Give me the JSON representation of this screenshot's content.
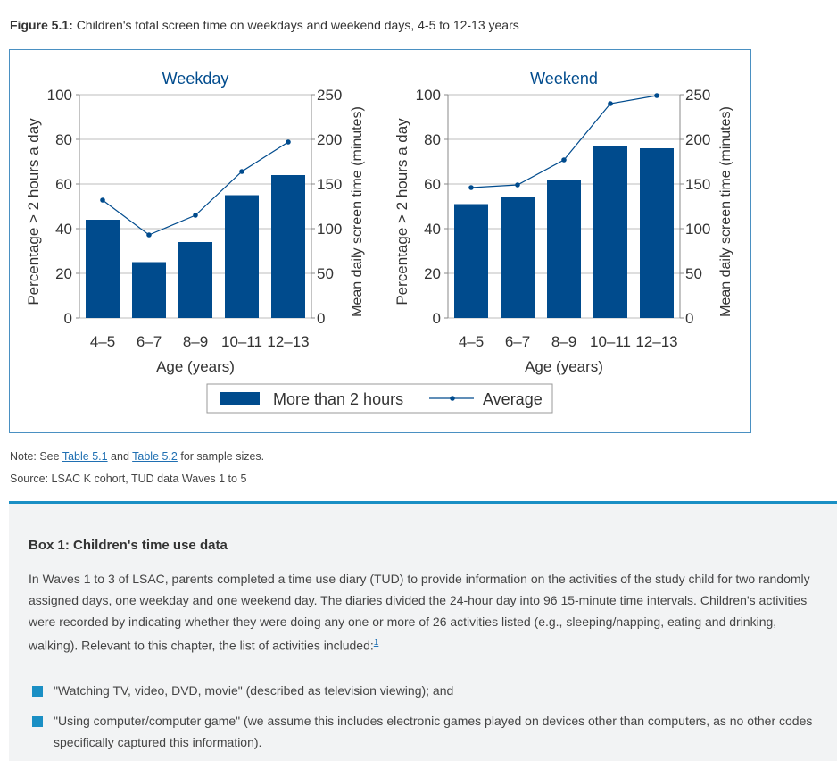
{
  "figure": {
    "label": "Figure 5.1:",
    "title": "Children's total screen time on weekdays and weekend days, 4-5 to 12-13 years"
  },
  "colors": {
    "bar": "#004b8d",
    "line": "#004b8d",
    "frame": "#4a90c2",
    "accent": "#1a8fc4",
    "link": "#1f6fb2"
  },
  "chart_data": [
    {
      "type": "bar",
      "title": "Weekday",
      "categories": [
        "4–5",
        "6–7",
        "8–9",
        "10–11",
        "12–13"
      ],
      "xlabel": "Age (years)",
      "ylabel": "Percentage > 2 hours a day",
      "y2label": "Mean daily screen time (minutes)",
      "ylim": [
        0,
        100
      ],
      "y2lim": [
        0,
        250
      ],
      "yticks": [
        "0",
        "20",
        "40",
        "60",
        "80",
        "100"
      ],
      "y2ticks": [
        "0",
        "50",
        "100",
        "150",
        "200",
        "250"
      ],
      "grid": true,
      "series": [
        {
          "name": "More than 2 hours",
          "type": "bar",
          "axis": "left",
          "values": [
            44,
            25,
            34,
            55,
            64
          ]
        },
        {
          "name": "Average",
          "type": "line",
          "axis": "right",
          "values": [
            132,
            93,
            115,
            164,
            197
          ]
        }
      ]
    },
    {
      "type": "bar",
      "title": "Weekend",
      "categories": [
        "4–5",
        "6–7",
        "8–9",
        "10–11",
        "12–13"
      ],
      "xlabel": "Age (years)",
      "ylabel": "Percentage > 2 hours a day",
      "y2label": "Mean daily screen time (minutes)",
      "ylim": [
        0,
        100
      ],
      "y2lim": [
        0,
        250
      ],
      "yticks": [
        "0",
        "20",
        "40",
        "60",
        "80",
        "100"
      ],
      "y2ticks": [
        "0",
        "50",
        "100",
        "150",
        "200",
        "250"
      ],
      "grid": true,
      "series": [
        {
          "name": "More than 2 hours",
          "type": "bar",
          "axis": "left",
          "values": [
            51,
            54,
            62,
            77,
            76
          ]
        },
        {
          "name": "Average",
          "type": "line",
          "axis": "right",
          "values": [
            146,
            149,
            177,
            240,
            249
          ]
        }
      ]
    }
  ],
  "legend": {
    "bar_label": "More than 2 hours",
    "line_label": "Average",
    "placement": "bottom"
  },
  "notes": {
    "note_prefix": "Note: See ",
    "link1": "Table 5.1",
    "and": " and ",
    "link2": "Table 5.2",
    "note_suffix": " for sample sizes.",
    "source": "Source: LSAC K cohort, TUD data Waves 1 to 5"
  },
  "box": {
    "title": "Box 1: Children's time use data",
    "paragraph": "In Waves 1 to 3 of LSAC, parents completed a time use diary (TUD) to provide information on the activities of the study child for two randomly assigned days, one weekday and one weekend day. The diaries divided the 24-hour day into 96 15-minute time intervals. Children's activities were recorded by indicating whether they were doing any one or more of 26 activities listed (e.g., sleeping/napping, eating and drinking, walking). Relevant to this chapter, the list of activities included:",
    "footnote": "1",
    "bullets": [
      "\"Watching TV, video, DVD, movie\" (described as television viewing); and",
      "\"Using computer/computer game\" (we assume this includes electronic games played on devices other than computers, as no other codes specifically captured this information)."
    ]
  }
}
